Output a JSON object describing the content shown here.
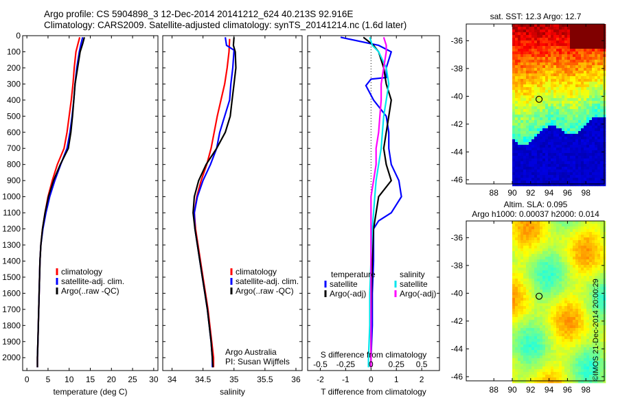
{
  "title_line1": "Argo profile: CS 5904898_3 12-Dec-2014 20141212_624 40.213S 92.916E",
  "title_line2": "Climatology: CARS2009. Satellite-adjusted climatology: synTS_20141214.nc (1.6d later)",
  "stamp": "©IMOS 21-Dec-2014 20:00:29",
  "colors": {
    "climatology": "#ff0000",
    "satellite": "#0000ff",
    "argo": "#000000",
    "cyan": "#00e5ee",
    "magenta": "#ff00ff"
  },
  "chart_data": [
    {
      "type": "line",
      "id": "temperature",
      "xlabel": "temperature (deg C)",
      "ylabel": "",
      "xlim": [
        -1,
        31
      ],
      "ylim": [
        2080,
        0
      ],
      "y_inverted": true,
      "xticks": [
        0,
        5,
        10,
        15,
        20,
        25,
        30
      ],
      "yticks": [
        0,
        100,
        200,
        300,
        400,
        500,
        600,
        700,
        800,
        900,
        1000,
        1100,
        1200,
        1300,
        1400,
        1500,
        1600,
        1700,
        1800,
        1900,
        2000
      ],
      "legend": [
        "climatology",
        "satellite-adj. clim.",
        "Argo(..raw -QC)"
      ],
      "legend_placement": "lower-right",
      "series": [
        {
          "name": "climatology",
          "color": "#ff0000",
          "points": [
            [
              12.5,
              10
            ],
            [
              12.1,
              50
            ],
            [
              11.6,
              100
            ],
            [
              11.2,
              200
            ],
            [
              10.9,
              300
            ],
            [
              10.5,
              400
            ],
            [
              10.0,
              500
            ],
            [
              9.5,
              600
            ],
            [
              8.8,
              700
            ],
            [
              7.2,
              800
            ],
            [
              6.0,
              900
            ],
            [
              5.0,
              1000
            ],
            [
              4.3,
              1100
            ],
            [
              3.7,
              1200
            ],
            [
              3.3,
              1300
            ],
            [
              3.1,
              1400
            ],
            [
              3.0,
              1500
            ],
            [
              2.9,
              1600
            ],
            [
              2.8,
              1700
            ],
            [
              2.7,
              1800
            ],
            [
              2.6,
              1900
            ],
            [
              2.5,
              2000
            ],
            [
              2.5,
              2060
            ]
          ]
        },
        {
          "name": "satellite-adj. clim.",
          "color": "#0000ff",
          "points": [
            [
              13.2,
              10
            ],
            [
              12.8,
              50
            ],
            [
              12.4,
              100
            ],
            [
              11.8,
              200
            ],
            [
              11.4,
              300
            ],
            [
              11.1,
              400
            ],
            [
              10.7,
              500
            ],
            [
              10.2,
              600
            ],
            [
              9.5,
              700
            ],
            [
              8.0,
              800
            ],
            [
              6.6,
              900
            ],
            [
              5.4,
              1000
            ],
            [
              4.5,
              1100
            ],
            [
              3.8,
              1200
            ],
            [
              3.3,
              1300
            ],
            [
              3.1,
              1400
            ],
            [
              3.0,
              1500
            ],
            [
              2.9,
              1600
            ],
            [
              2.8,
              1700
            ],
            [
              2.7,
              1800
            ],
            [
              2.6,
              1900
            ],
            [
              2.5,
              2000
            ],
            [
              2.5,
              2060
            ]
          ]
        },
        {
          "name": "Argo(..raw -QC)",
          "color": "#000000",
          "points": [
            [
              13.6,
              10
            ],
            [
              13.2,
              50
            ],
            [
              12.6,
              100
            ],
            [
              12.0,
              200
            ],
            [
              11.4,
              300
            ],
            [
              11.1,
              400
            ],
            [
              10.8,
              500
            ],
            [
              10.4,
              600
            ],
            [
              9.8,
              700
            ],
            [
              7.9,
              800
            ],
            [
              6.3,
              900
            ],
            [
              5.1,
              1000
            ],
            [
              4.3,
              1100
            ],
            [
              3.7,
              1200
            ],
            [
              3.3,
              1300
            ],
            [
              3.1,
              1400
            ],
            [
              3.0,
              1500
            ],
            [
              2.9,
              1600
            ],
            [
              2.8,
              1700
            ],
            [
              2.7,
              1800
            ],
            [
              2.6,
              1900
            ],
            [
              2.5,
              2000
            ],
            [
              2.5,
              2060
            ]
          ]
        }
      ]
    },
    {
      "type": "line",
      "id": "salinity",
      "xlabel": "salinity",
      "ylabel": "",
      "xlim": [
        33.85,
        36.1
      ],
      "ylim": [
        2080,
        0
      ],
      "y_inverted": true,
      "xticks": [
        34,
        34.5,
        35,
        35.5,
        36
      ],
      "xticklabels": [
        "34",
        "34.5",
        "35",
        "35.5",
        "36"
      ],
      "legend": [
        "climatology",
        "satellite-adj. clim.",
        "Argo(..raw -QC)"
      ],
      "legend_placement": "lower-right",
      "annotation": [
        "Argo Australia",
        "PI: Susan Wijffels"
      ],
      "series": [
        {
          "name": "climatology",
          "color": "#ff0000",
          "points": [
            [
              34.93,
              20
            ],
            [
              34.92,
              100
            ],
            [
              34.89,
              200
            ],
            [
              34.85,
              300
            ],
            [
              34.79,
              400
            ],
            [
              34.73,
              500
            ],
            [
              34.68,
              600
            ],
            [
              34.63,
              700
            ],
            [
              34.56,
              800
            ],
            [
              34.47,
              900
            ],
            [
              34.4,
              1000
            ],
            [
              34.36,
              1100
            ],
            [
              34.38,
              1200
            ],
            [
              34.42,
              1300
            ],
            [
              34.46,
              1400
            ],
            [
              34.5,
              1500
            ],
            [
              34.54,
              1600
            ],
            [
              34.58,
              1700
            ],
            [
              34.61,
              1800
            ],
            [
              34.64,
              1900
            ],
            [
              34.67,
              2000
            ],
            [
              34.67,
              2060
            ]
          ]
        },
        {
          "name": "satellite-adj. clim.",
          "color": "#0000ff",
          "points": [
            [
              34.86,
              10
            ],
            [
              34.88,
              60
            ],
            [
              35.0,
              90
            ],
            [
              34.98,
              200
            ],
            [
              34.95,
              300
            ],
            [
              34.93,
              400
            ],
            [
              34.85,
              500
            ],
            [
              34.77,
              600
            ],
            [
              34.72,
              700
            ],
            [
              34.62,
              800
            ],
            [
              34.5,
              900
            ],
            [
              34.41,
              1000
            ],
            [
              34.36,
              1100
            ],
            [
              34.37,
              1200
            ],
            [
              34.41,
              1300
            ],
            [
              34.45,
              1400
            ],
            [
              34.49,
              1500
            ],
            [
              34.53,
              1600
            ],
            [
              34.57,
              1700
            ],
            [
              34.6,
              1800
            ],
            [
              34.63,
              1900
            ],
            [
              34.65,
              2000
            ],
            [
              34.65,
              2060
            ]
          ]
        },
        {
          "name": "Argo(..raw -QC)",
          "color": "#000000",
          "points": [
            [
              35.0,
              10
            ],
            [
              34.99,
              60
            ],
            [
              35.02,
              100
            ],
            [
              35.03,
              200
            ],
            [
              35.0,
              300
            ],
            [
              34.97,
              400
            ],
            [
              34.94,
              500
            ],
            [
              34.86,
              600
            ],
            [
              34.72,
              700
            ],
            [
              34.55,
              800
            ],
            [
              34.43,
              900
            ],
            [
              34.36,
              1000
            ],
            [
              34.34,
              1100
            ],
            [
              34.37,
              1200
            ],
            [
              34.41,
              1300
            ],
            [
              34.45,
              1400
            ],
            [
              34.49,
              1500
            ],
            [
              34.53,
              1600
            ],
            [
              34.57,
              1700
            ],
            [
              34.6,
              1800
            ],
            [
              34.63,
              1900
            ],
            [
              34.65,
              2000
            ],
            [
              34.66,
              2060
            ]
          ]
        }
      ]
    },
    {
      "type": "line",
      "id": "differences",
      "xlabel": "T difference from climatology",
      "ylabel": "",
      "xlabel_top": "S difference from climatology",
      "xlim": [
        -2.5,
        2.7
      ],
      "ylim": [
        2080,
        0
      ],
      "y_inverted": true,
      "xticks": [
        -2,
        -1,
        0,
        1,
        2
      ],
      "secondary_xticks": [
        -0.5,
        -0.25,
        0,
        0.25,
        0.5
      ],
      "secondary_xticklabels": [
        "-0.5",
        "-0.25",
        "0",
        "0.25",
        "0.5"
      ],
      "legend_headers": [
        "temperature",
        "salinity"
      ],
      "legend": [
        "satellite",
        "Argo(-adj)",
        "satellite",
        "Argo(-adj)"
      ],
      "legend_placement": "lower-center",
      "zero_line": "dotted",
      "series": [
        {
          "name": "satellite",
          "group": "temperature",
          "color": "#0000ff",
          "points": [
            [
              -1.2,
              10
            ],
            [
              0.3,
              60
            ],
            [
              0.8,
              100
            ],
            [
              0.6,
              200
            ],
            [
              0.6,
              260
            ],
            [
              0.0,
              270
            ],
            [
              -0.2,
              310
            ],
            [
              0.1,
              400
            ],
            [
              0.6,
              500
            ],
            [
              0.7,
              600
            ],
            [
              0.7,
              700
            ],
            [
              0.8,
              800
            ],
            [
              1.1,
              900
            ],
            [
              1.2,
              1000
            ],
            [
              0.8,
              1100
            ],
            [
              0.3,
              1150
            ],
            [
              0.1,
              1200
            ],
            [
              0.1,
              1400
            ],
            [
              0.05,
              1600
            ],
            [
              0.05,
              1800
            ],
            [
              0.0,
              2000
            ],
            [
              0.0,
              2060
            ]
          ]
        },
        {
          "name": "Argo(-adj)",
          "group": "temperature",
          "color": "#000000",
          "points": [
            [
              -0.3,
              10
            ],
            [
              0.1,
              60
            ],
            [
              0.3,
              100
            ],
            [
              0.5,
              200
            ],
            [
              0.6,
              300
            ],
            [
              0.8,
              400
            ],
            [
              0.7,
              500
            ],
            [
              0.6,
              600
            ],
            [
              0.5,
              700
            ],
            [
              0.6,
              800
            ],
            [
              0.8,
              900
            ],
            [
              0.3,
              1000
            ],
            [
              0.2,
              1100
            ],
            [
              0.1,
              1200
            ],
            [
              0.05,
              1400
            ],
            [
              0.02,
              1600
            ],
            [
              0.0,
              1800
            ],
            [
              0.0,
              2000
            ],
            [
              0.0,
              2060
            ]
          ]
        },
        {
          "name": "satellite",
          "group": "salinity",
          "color": "#00e5ee",
          "points": [
            [
              -0.05,
              10
            ],
            [
              0.05,
              60
            ],
            [
              0.3,
              100
            ],
            [
              0.6,
              200
            ],
            [
              0.7,
              300
            ],
            [
              0.6,
              400
            ],
            [
              0.5,
              500
            ],
            [
              0.45,
              600
            ],
            [
              0.4,
              700
            ],
            [
              0.3,
              800
            ],
            [
              0.2,
              900
            ],
            [
              0.15,
              1000
            ],
            [
              0.1,
              1100
            ],
            [
              0.05,
              1200
            ],
            [
              0.0,
              1400
            ],
            [
              -0.05,
              1600
            ],
            [
              -0.05,
              1800
            ],
            [
              -0.1,
              2000
            ],
            [
              -0.1,
              2060
            ]
          ]
        },
        {
          "name": "Argo(-adj)",
          "group": "salinity",
          "color": "#ff00ff",
          "points": [
            [
              0.5,
              10
            ],
            [
              0.6,
              60
            ],
            [
              0.6,
              100
            ],
            [
              0.5,
              200
            ],
            [
              0.4,
              300
            ],
            [
              0.4,
              400
            ],
            [
              0.35,
              500
            ],
            [
              0.3,
              600
            ],
            [
              0.2,
              700
            ],
            [
              0.2,
              800
            ],
            [
              0.1,
              900
            ],
            [
              0.0,
              1000
            ],
            [
              0.0,
              1200
            ],
            [
              0.0,
              1400
            ],
            [
              0.0,
              1600
            ],
            [
              0.0,
              1800
            ],
            [
              0.0,
              2000
            ],
            [
              0.0,
              2060
            ]
          ]
        }
      ]
    },
    {
      "type": "heatmap",
      "id": "sst_map",
      "title": "sat. SST: 12.3  Argo: 12.7",
      "xlim": [
        85,
        100
      ],
      "ylim": [
        -46.3,
        -34.8
      ],
      "xticks": [
        88,
        90,
        92,
        94,
        96,
        98
      ],
      "yticks": [
        -36,
        -38,
        -40,
        -42,
        -44,
        -46
      ],
      "data_x_start": 90,
      "marker": {
        "lon": 92.916,
        "lat": -40.213
      }
    },
    {
      "type": "heatmap",
      "id": "sla_map",
      "title": "Altim. SLA: 0.095",
      "subtitle": "Argo h1000: 0.00037 h2000: 0.014",
      "xlim": [
        85,
        100
      ],
      "ylim": [
        -46.3,
        -34.8
      ],
      "xticks": [
        88,
        90,
        92,
        94,
        96,
        98
      ],
      "yticks": [
        -36,
        -38,
        -40,
        -42,
        -44,
        -46
      ],
      "data_x_start": 90,
      "marker": {
        "lon": 92.916,
        "lat": -40.213
      }
    }
  ]
}
